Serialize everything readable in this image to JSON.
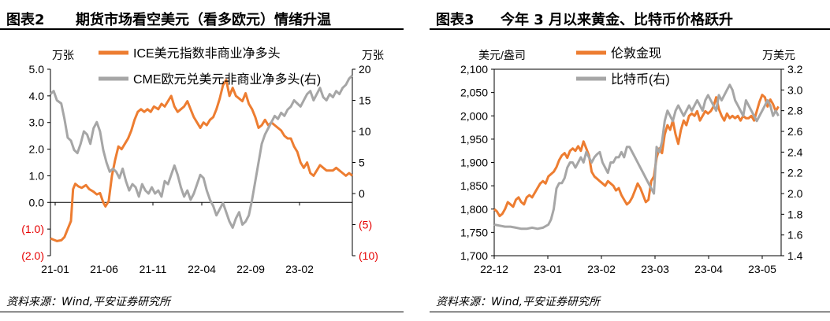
{
  "left": {
    "figure_label": "图表2",
    "title": "期货市场看空美元（看多欧元）情绪升温",
    "source": "资料来源：Wind,平安证券研究所",
    "chart_data": {
      "type": "line",
      "left_unit": "万张",
      "right_unit": "万张",
      "y_left": {
        "min": -2.0,
        "max": 5.0,
        "ticks": [
          "(2.0)",
          "(1.0)",
          "0.0",
          "1.0",
          "2.0",
          "3.0",
          "4.0",
          "5.0"
        ],
        "tick_values": [
          -2,
          -1,
          0,
          1,
          2,
          3,
          4,
          5
        ]
      },
      "y_right": {
        "min": -10,
        "max": 20,
        "ticks": [
          "(10)",
          "(5)",
          "0",
          "5",
          "10",
          "15",
          "20"
        ],
        "tick_values": [
          -10,
          -5,
          0,
          5,
          10,
          15,
          20
        ]
      },
      "x_ticks": [
        "21-01",
        "21-06",
        "21-11",
        "22-04",
        "22-09",
        "23-02"
      ],
      "x_range": [
        0,
        28
      ],
      "negative_tick_color": "#E60000",
      "series": [
        {
          "name": "ICE美元指数非商业净多头",
          "color": "#ED7D31",
          "axis": "left",
          "x": [
            0,
            0.3,
            0.6,
            1.0,
            1.3,
            1.6,
            1.9,
            2.1,
            2.3,
            2.6,
            2.9,
            3.3,
            3.6,
            4.0,
            4.3,
            4.6,
            4.9,
            5.1,
            5.4,
            5.7,
            6.0,
            6.3,
            6.6,
            6.9,
            7.2,
            7.5,
            7.8,
            8.1,
            8.4,
            8.7,
            9.0,
            9.3,
            9.6,
            10.0,
            10.3,
            10.6,
            10.9,
            11.2,
            11.5,
            11.8,
            12.1,
            12.4,
            12.7,
            13.0,
            13.3,
            13.6,
            13.9,
            14.2,
            14.5,
            14.8,
            15.1,
            15.4,
            15.7,
            16.0,
            16.3,
            16.6,
            16.9,
            17.2,
            17.5,
            17.8,
            18.1,
            18.4,
            18.7,
            19.0,
            19.3,
            19.6,
            19.9,
            20.2,
            20.5,
            20.8,
            21.1,
            21.4,
            21.7,
            22.0,
            22.3,
            22.6,
            22.9,
            23.2,
            23.5,
            23.8,
            24.1,
            24.4,
            24.7,
            25.0,
            25.3,
            25.6,
            25.9,
            26.2,
            26.5,
            26.8,
            27.1,
            27.4,
            27.7,
            28.0
          ],
          "y": [
            -1.35,
            -1.4,
            -1.45,
            -1.42,
            -1.3,
            -1.0,
            -0.7,
            0.5,
            0.7,
            0.6,
            0.55,
            0.65,
            0.5,
            0.4,
            0.3,
            0.35,
            0.0,
            -0.15,
            0.05,
            1.0,
            1.6,
            2.1,
            2.0,
            2.2,
            2.4,
            2.7,
            3.1,
            3.4,
            3.5,
            3.4,
            3.5,
            3.4,
            3.6,
            3.5,
            3.7,
            3.6,
            3.8,
            4.0,
            3.6,
            3.4,
            3.5,
            3.6,
            3.8,
            3.5,
            3.2,
            3.0,
            2.8,
            3.0,
            2.9,
            3.1,
            3.2,
            3.5,
            3.9,
            4.4,
            4.6,
            4.0,
            4.3,
            4.0,
            3.9,
            3.8,
            4.1,
            3.7,
            3.5,
            3.2,
            2.8,
            2.9,
            3.1,
            2.9,
            3.0,
            2.9,
            2.8,
            2.7,
            2.5,
            2.4,
            2.4,
            2.1,
            1.9,
            1.5,
            1.3,
            1.5,
            1.1,
            1.0,
            1.2,
            1.4,
            1.3,
            1.2,
            1.2,
            1.2,
            1.3,
            1.2,
            1.1,
            1.0,
            1.1,
            1.0
          ]
        },
        {
          "name": "CME欧元兑美元非商业净多头(右)",
          "color": "#A6A6A6",
          "axis": "right",
          "x": [
            0,
            0.3,
            0.6,
            1.0,
            1.3,
            1.6,
            1.9,
            2.2,
            2.5,
            2.8,
            3.1,
            3.4,
            3.7,
            4.0,
            4.3,
            4.6,
            4.9,
            5.2,
            5.5,
            5.8,
            6.1,
            6.4,
            6.7,
            7.0,
            7.3,
            7.6,
            7.9,
            8.2,
            8.5,
            8.8,
            9.1,
            9.4,
            9.7,
            10.0,
            10.3,
            10.6,
            10.9,
            11.2,
            11.5,
            11.8,
            12.1,
            12.4,
            12.7,
            13.0,
            13.3,
            13.6,
            13.9,
            14.2,
            14.5,
            14.8,
            15.1,
            15.4,
            15.7,
            16.0,
            16.3,
            16.6,
            16.9,
            17.2,
            17.5,
            17.8,
            18.1,
            18.4,
            18.7,
            19.0,
            19.3,
            19.6,
            19.9,
            20.2,
            20.5,
            20.8,
            21.1,
            21.4,
            21.7,
            22.0,
            22.3,
            22.6,
            22.9,
            23.2,
            23.5,
            23.8,
            24.1,
            24.4,
            24.7,
            25.0,
            25.3,
            25.6,
            25.9,
            26.2,
            26.5,
            26.8,
            27.1,
            27.4,
            27.7,
            28.0
          ],
          "y": [
            16.0,
            16.5,
            15.0,
            14.5,
            12.0,
            9.0,
            8.5,
            7.0,
            6.5,
            8.0,
            10.0,
            9.5,
            8.0,
            10.5,
            11.5,
            10.0,
            7.0,
            5.0,
            3.5,
            4.0,
            3.5,
            2.5,
            4.0,
            2.0,
            0.5,
            1.5,
            1.0,
            -0.5,
            1.5,
            0.5,
            0.0,
            1.0,
            0.0,
            0.5,
            -0.5,
            2.0,
            1.5,
            3.0,
            4.5,
            3.0,
            1.0,
            -0.5,
            0.5,
            -1.0,
            0.0,
            1.5,
            3.0,
            2.5,
            0.5,
            -1.0,
            -2.0,
            -3.5,
            -2.5,
            -1.5,
            -3.0,
            -4.5,
            -5.5,
            -4.0,
            -3.0,
            -5.0,
            -4.5,
            -3.5,
            -1.0,
            2.0,
            5.0,
            8.0,
            9.5,
            10.5,
            11.5,
            12.5,
            12.0,
            13.0,
            12.5,
            13.5,
            14.0,
            15.0,
            14.5,
            14.0,
            15.0,
            16.0,
            16.5,
            15.0,
            16.0,
            17.0,
            15.5,
            15.0,
            16.0,
            15.5,
            16.5,
            16.0,
            17.0,
            17.5,
            18.5,
            19.0
          ]
        }
      ]
    }
  },
  "right": {
    "figure_label": "图表3",
    "title": "今年 3 月以来黄金、比特币价格跃升",
    "source": "资料来源：Wind,平安证券研究所",
    "chart_data": {
      "type": "line",
      "left_unit": "美元/盎司",
      "right_unit": "万美元",
      "y_left": {
        "min": 1700,
        "max": 2100,
        "ticks": [
          "1,700",
          "1,750",
          "1,800",
          "1,850",
          "1,900",
          "1,950",
          "2,000",
          "2,050",
          "2,100"
        ],
        "tick_values": [
          1700,
          1750,
          1800,
          1850,
          1900,
          1950,
          2000,
          2050,
          2100
        ]
      },
      "y_right": {
        "min": 1.4,
        "max": 3.2,
        "ticks": [
          "1.4",
          "1.6",
          "1.8",
          "2.0",
          "2.2",
          "2.4",
          "2.6",
          "2.8",
          "3.0",
          "3.2"
        ],
        "tick_values": [
          1.4,
          1.6,
          1.8,
          2.0,
          2.2,
          2.4,
          2.6,
          2.8,
          3.0,
          3.2
        ]
      },
      "x_ticks": [
        "22-12",
        "23-01",
        "23-02",
        "23-03",
        "23-04",
        "23-05"
      ],
      "x_range": [
        0,
        5.3
      ],
      "series": [
        {
          "name": "伦敦金现",
          "color": "#ED7D31",
          "axis": "left",
          "x": [
            0,
            0.05,
            0.1,
            0.15,
            0.2,
            0.25,
            0.3,
            0.35,
            0.4,
            0.45,
            0.5,
            0.55,
            0.6,
            0.65,
            0.7,
            0.75,
            0.8,
            0.85,
            0.9,
            0.95,
            1.0,
            1.05,
            1.1,
            1.15,
            1.2,
            1.25,
            1.3,
            1.35,
            1.4,
            1.45,
            1.5,
            1.55,
            1.6,
            1.65,
            1.7,
            1.75,
            1.8,
            1.85,
            1.9,
            1.95,
            2.0,
            2.05,
            2.1,
            2.15,
            2.2,
            2.25,
            2.3,
            2.35,
            2.4,
            2.45,
            2.5,
            2.55,
            2.6,
            2.65,
            2.7,
            2.75,
            2.8,
            2.85,
            2.9,
            2.95,
            3.0,
            3.05,
            3.1,
            3.15,
            3.2,
            3.25,
            3.3,
            3.35,
            3.4,
            3.45,
            3.5,
            3.55,
            3.6,
            3.65,
            3.7,
            3.75,
            3.8,
            3.85,
            3.9,
            3.95,
            4.0,
            4.05,
            4.1,
            4.15,
            4.2,
            4.25,
            4.3,
            4.35,
            4.4,
            4.45,
            4.5,
            4.55,
            4.6,
            4.65,
            4.7,
            4.75,
            4.8,
            4.85,
            4.9,
            4.95,
            5.0,
            5.05,
            5.1,
            5.15,
            5.2,
            5.25
          ],
          "y": [
            1800,
            1795,
            1785,
            1790,
            1800,
            1815,
            1810,
            1805,
            1820,
            1825,
            1815,
            1810,
            1825,
            1830,
            1825,
            1835,
            1845,
            1855,
            1860,
            1855,
            1870,
            1875,
            1880,
            1890,
            1905,
            1915,
            1920,
            1910,
            1925,
            1930,
            1925,
            1935,
            1925,
            1945,
            1930,
            1915,
            1880,
            1870,
            1865,
            1860,
            1855,
            1850,
            1860,
            1855,
            1850,
            1840,
            1845,
            1830,
            1820,
            1810,
            1815,
            1825,
            1840,
            1855,
            1845,
            1830,
            1815,
            1820,
            1860,
            1870,
            1910,
            1930,
            1920,
            1960,
            1980,
            1970,
            1990,
            1960,
            1940,
            1970,
            1990,
            1980,
            2000,
            2005,
            2000,
            2010,
            1990,
            2000,
            2010,
            2005,
            2010,
            2020,
            2040,
            2015,
            2000,
            1990,
            2005,
            1995,
            2000,
            1995,
            2000,
            1990,
            2000,
            1995,
            1995,
            2000,
            1990,
            2010,
            2030,
            2045,
            2040,
            2020,
            2035,
            2025,
            2010,
            2020
          ]
        },
        {
          "name": "比特币(右)",
          "color": "#A6A6A6",
          "axis": "right",
          "x": [
            0,
            0.1,
            0.2,
            0.3,
            0.4,
            0.5,
            0.6,
            0.7,
            0.8,
            0.9,
            1.0,
            1.05,
            1.1,
            1.15,
            1.2,
            1.25,
            1.3,
            1.35,
            1.4,
            1.45,
            1.5,
            1.55,
            1.6,
            1.65,
            1.7,
            1.75,
            1.8,
            1.85,
            1.9,
            1.95,
            2.0,
            2.05,
            2.1,
            2.15,
            2.2,
            2.25,
            2.3,
            2.35,
            2.4,
            2.45,
            2.5,
            2.55,
            2.6,
            2.65,
            2.7,
            2.75,
            2.8,
            2.85,
            2.9,
            2.95,
            3.0,
            3.05,
            3.1,
            3.15,
            3.2,
            3.25,
            3.3,
            3.35,
            3.4,
            3.45,
            3.5,
            3.55,
            3.6,
            3.65,
            3.7,
            3.75,
            3.8,
            3.85,
            3.9,
            3.95,
            4.0,
            4.05,
            4.1,
            4.15,
            4.2,
            4.25,
            4.3,
            4.35,
            4.4,
            4.45,
            4.5,
            4.55,
            4.6,
            4.65,
            4.7,
            4.75,
            4.8,
            4.85,
            4.9,
            4.95,
            5.0,
            5.05,
            5.1,
            5.15,
            5.2,
            5.25
          ],
          "y": [
            1.7,
            1.69,
            1.68,
            1.68,
            1.67,
            1.66,
            1.66,
            1.67,
            1.66,
            1.67,
            1.7,
            1.75,
            1.85,
            2.05,
            2.1,
            2.1,
            2.15,
            2.25,
            2.3,
            2.3,
            2.25,
            2.3,
            2.35,
            2.3,
            2.4,
            2.35,
            2.3,
            2.35,
            2.38,
            2.4,
            2.3,
            2.25,
            2.2,
            2.3,
            2.3,
            2.35,
            2.35,
            2.4,
            2.35,
            2.45,
            2.45,
            2.4,
            2.35,
            2.3,
            2.25,
            2.2,
            2.15,
            2.1,
            2.05,
            2.0,
            2.45,
            2.4,
            2.5,
            2.7,
            2.8,
            2.75,
            2.7,
            2.8,
            2.85,
            2.8,
            2.75,
            2.8,
            2.85,
            2.8,
            2.85,
            2.9,
            2.85,
            2.8,
            2.9,
            2.95,
            2.9,
            2.85,
            2.8,
            2.95,
            2.9,
            2.95,
            3.0,
            3.05,
            3.0,
            2.9,
            2.85,
            2.8,
            2.75,
            2.9,
            2.85,
            2.8,
            2.75,
            2.7,
            2.75,
            2.8,
            2.85,
            2.9,
            2.85,
            2.75,
            2.8,
            2.75
          ]
        }
      ]
    }
  }
}
